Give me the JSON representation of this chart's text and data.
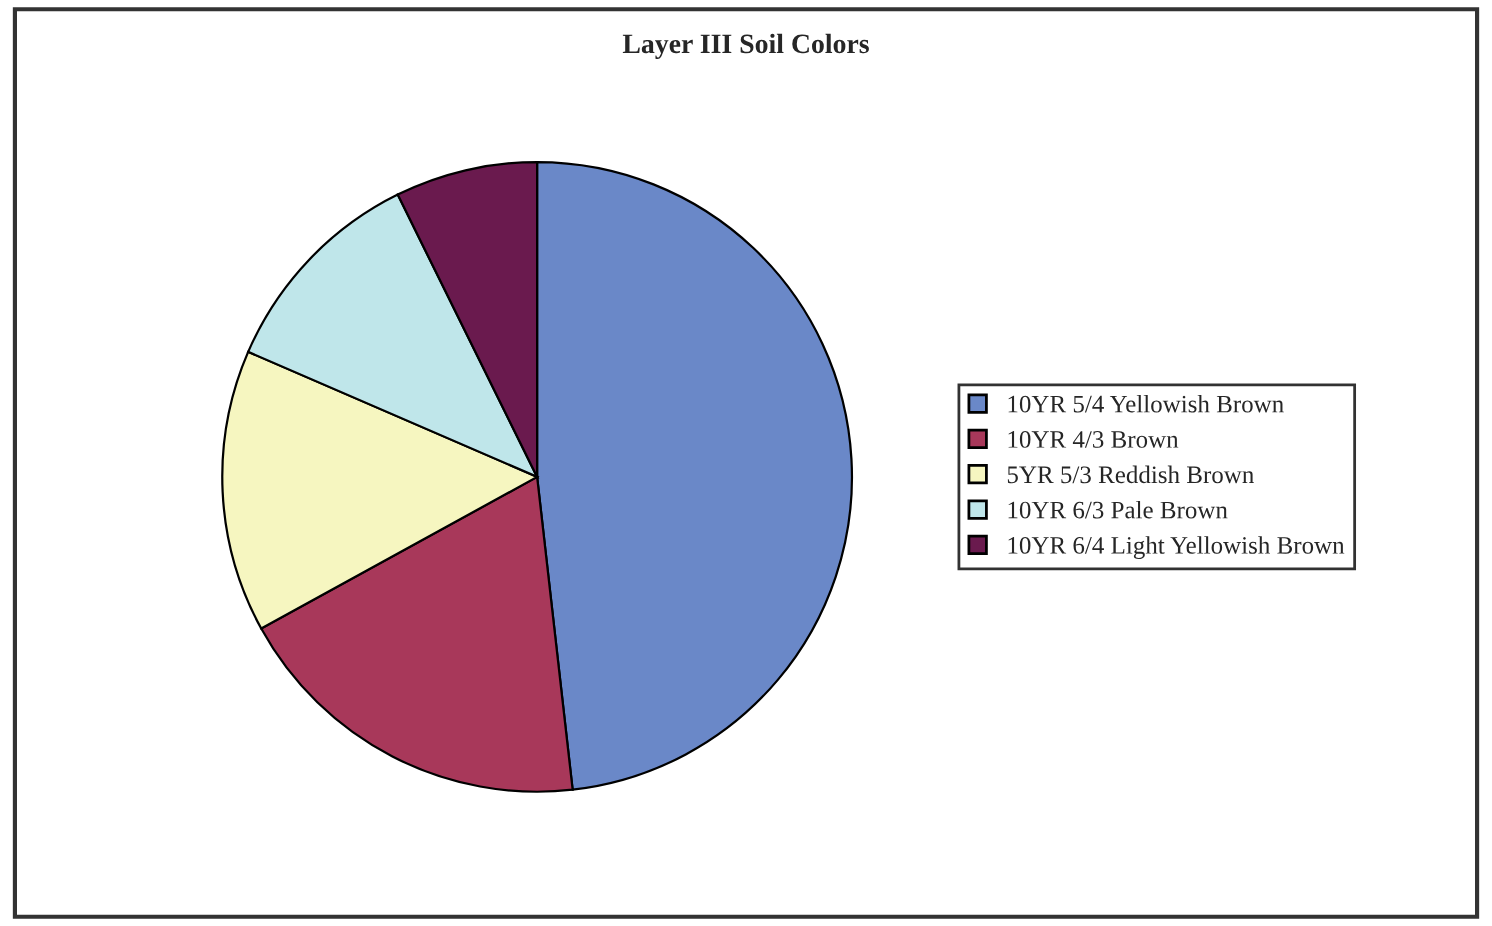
{
  "chart_data": {
    "type": "pie",
    "title": "Layer III Soil Colors",
    "categories": [
      "10YR 5/4 Yellowish Brown",
      "10YR 4/3 Brown",
      "5YR 5/3 Reddish Brown",
      "10YR 6/3 Pale Brown",
      "10YR 6/4 Light Yellowish Brown"
    ],
    "values": [
      48.2,
      18.8,
      14.5,
      11.2,
      7.3
    ],
    "colors": [
      "#6a88c8",
      "#a8385a",
      "#f6f6c0",
      "#bfe6ea",
      "#6a1a4e"
    ],
    "legend": "right"
  }
}
